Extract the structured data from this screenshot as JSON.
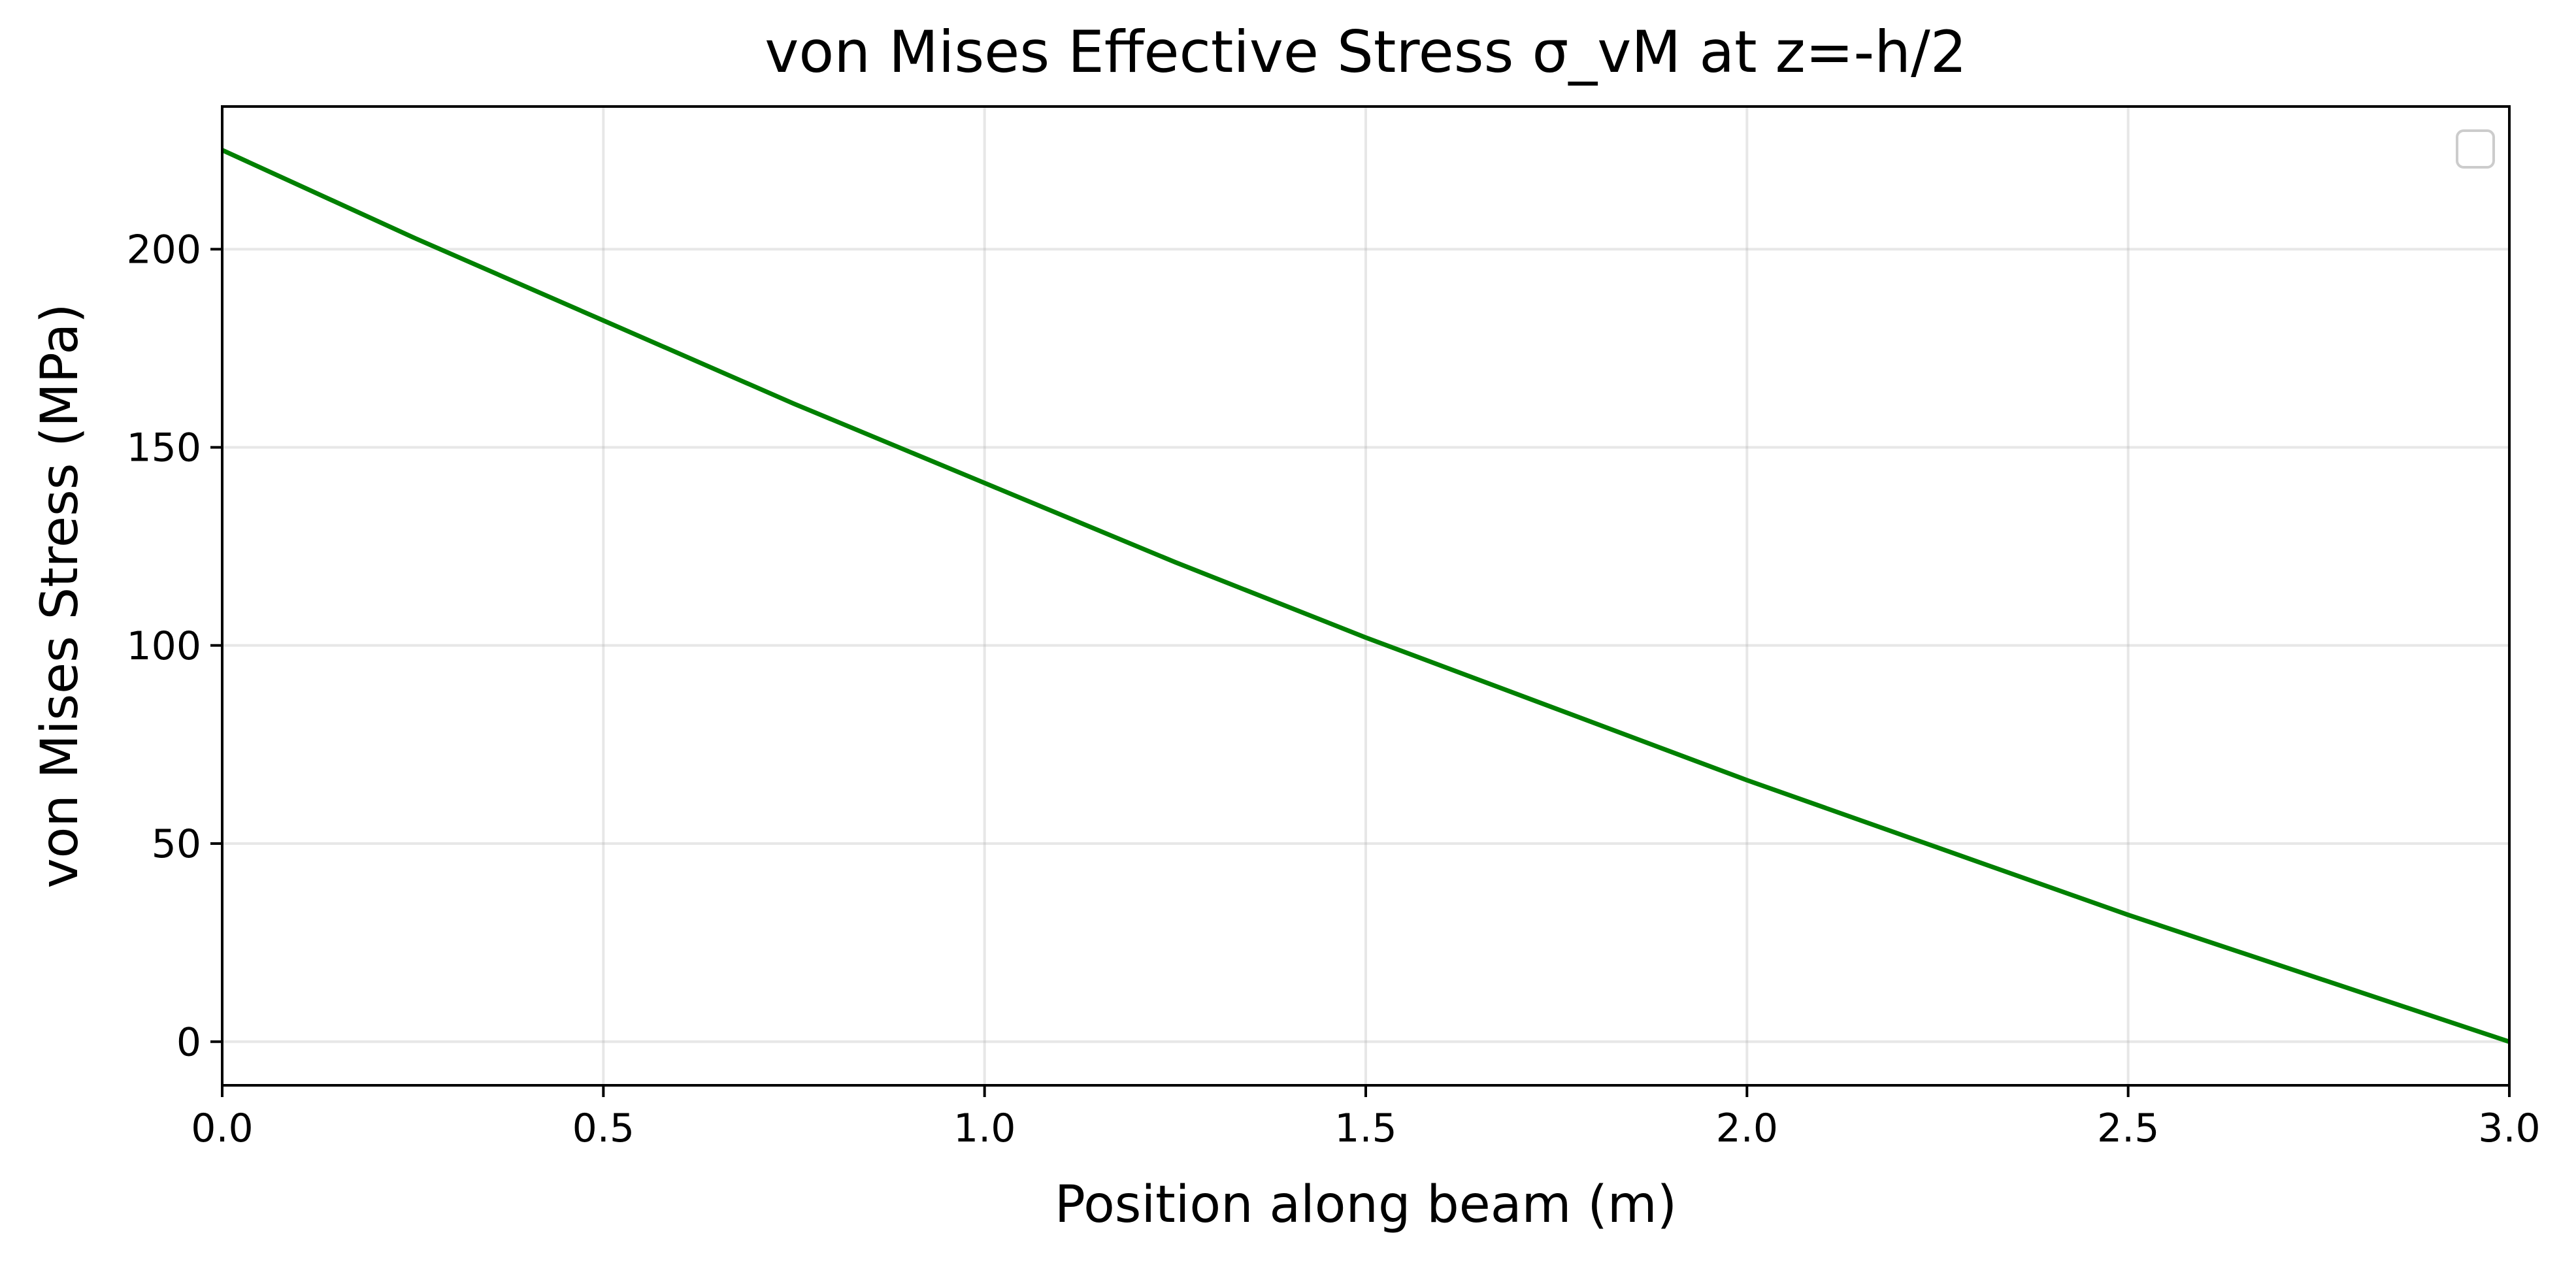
{
  "chart_data": {
    "type": "line",
    "title": "von Mises Effective Stress σ_vM at z=-h/2",
    "xlabel": "Position along beam (m)",
    "ylabel": "von Mises Stress (MPa)",
    "xlim": [
      0.0,
      3.0
    ],
    "ylim": [
      -11,
      236
    ],
    "xticks": [
      "0.0",
      "0.5",
      "1.0",
      "1.5",
      "2.0",
      "2.5",
      "3.0"
    ],
    "xtick_values": [
      0.0,
      0.5,
      1.0,
      1.5,
      2.0,
      2.5,
      3.0
    ],
    "yticks": [
      "0",
      "50",
      "100",
      "150",
      "200"
    ],
    "ytick_values": [
      0,
      50,
      100,
      150,
      200
    ],
    "grid": true,
    "legend": "upper right (empty)",
    "series": [
      {
        "color": "#008000",
        "x": [
          0.0,
          0.25,
          0.5,
          0.75,
          1.0,
          1.25,
          1.5,
          1.75,
          2.0,
          2.25,
          2.5,
          2.75,
          3.0
        ],
        "y": [
          225,
          203,
          182,
          161,
          141,
          121,
          102,
          84,
          66,
          49,
          32,
          16,
          0
        ]
      }
    ]
  }
}
